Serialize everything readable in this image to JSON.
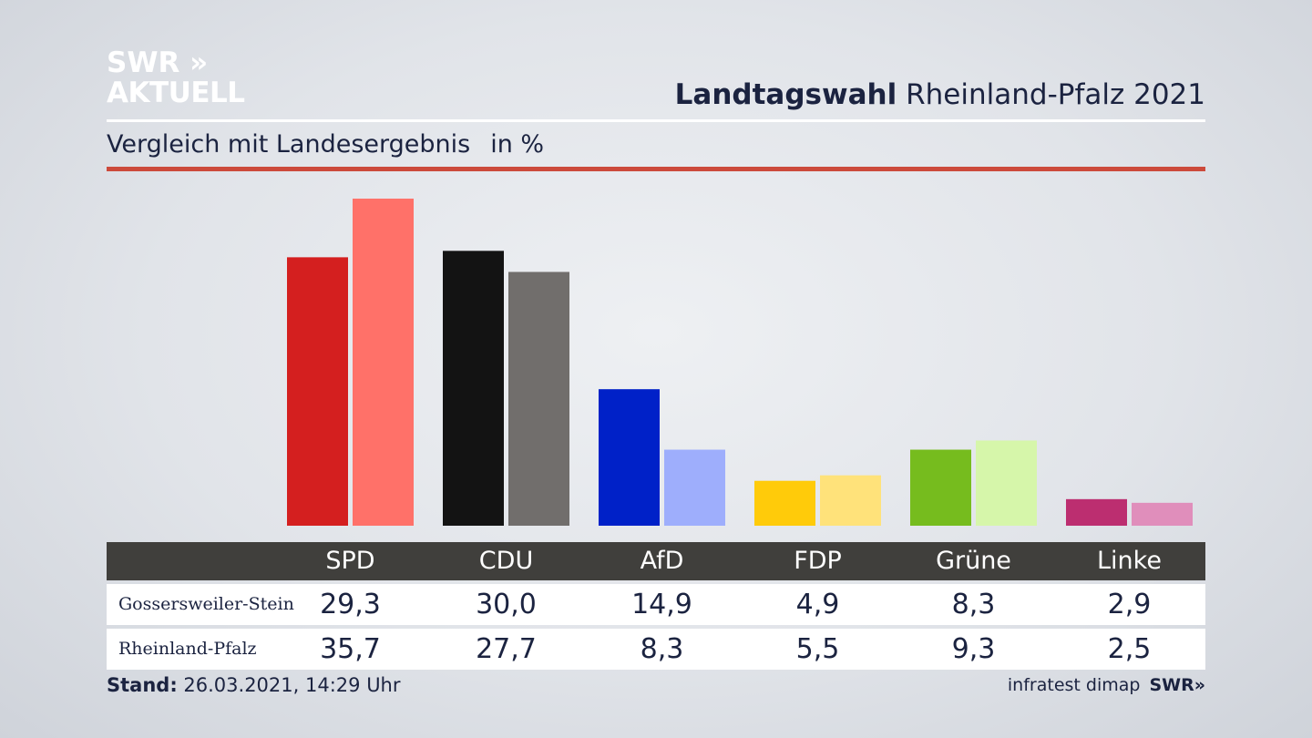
{
  "header": {
    "logo_line1": "SWR »",
    "logo_line2": "AKTUELL",
    "title_bold": "Landtagswahl",
    "title_rest": "Rheinland-Pfalz 2021",
    "subtitle": "Vergleich mit Landesergebnis",
    "unit": "in %"
  },
  "chart_data": {
    "type": "bar",
    "categories": [
      "SPD",
      "CDU",
      "AfD",
      "FDP",
      "Grüne",
      "Linke"
    ],
    "series": [
      {
        "name": "Gossersweiler-Stein",
        "values": [
          29.3,
          30.0,
          14.9,
          4.9,
          8.3,
          2.9
        ]
      },
      {
        "name": "Rheinland-Pfalz",
        "values": [
          35.7,
          27.7,
          8.3,
          5.5,
          9.3,
          2.5
        ]
      }
    ],
    "colors": [
      [
        "#d41f1f",
        "#ff7169"
      ],
      [
        "#131313",
        "#716e6c"
      ],
      [
        "#0021c8",
        "#9eaefc"
      ],
      [
        "#ffcb0a",
        "#ffe27a"
      ],
      [
        "#76bc1e",
        "#d6f6aa"
      ],
      [
        "#bc2e70",
        "#e08ebb"
      ]
    ],
    "ylim": [
      0,
      36
    ],
    "grid": false
  },
  "table": {
    "headers": [
      "SPD",
      "CDU",
      "AfD",
      "FDP",
      "Grüne",
      "Linke"
    ],
    "rows": [
      {
        "label": "Gossersweiler-Stein",
        "values": [
          "29,3",
          "30,0",
          "14,9",
          "4,9",
          "8,3",
          "2,9"
        ]
      },
      {
        "label": "Rheinland-Pfalz",
        "values": [
          "35,7",
          "27,7",
          "8,3",
          "5,5",
          "9,3",
          "2,5"
        ]
      }
    ]
  },
  "footer": {
    "stand_label": "Stand:",
    "stand_value": "26.03.2021, 14:29 Uhr",
    "source": "infratest dimap",
    "brand": "SWR»"
  }
}
